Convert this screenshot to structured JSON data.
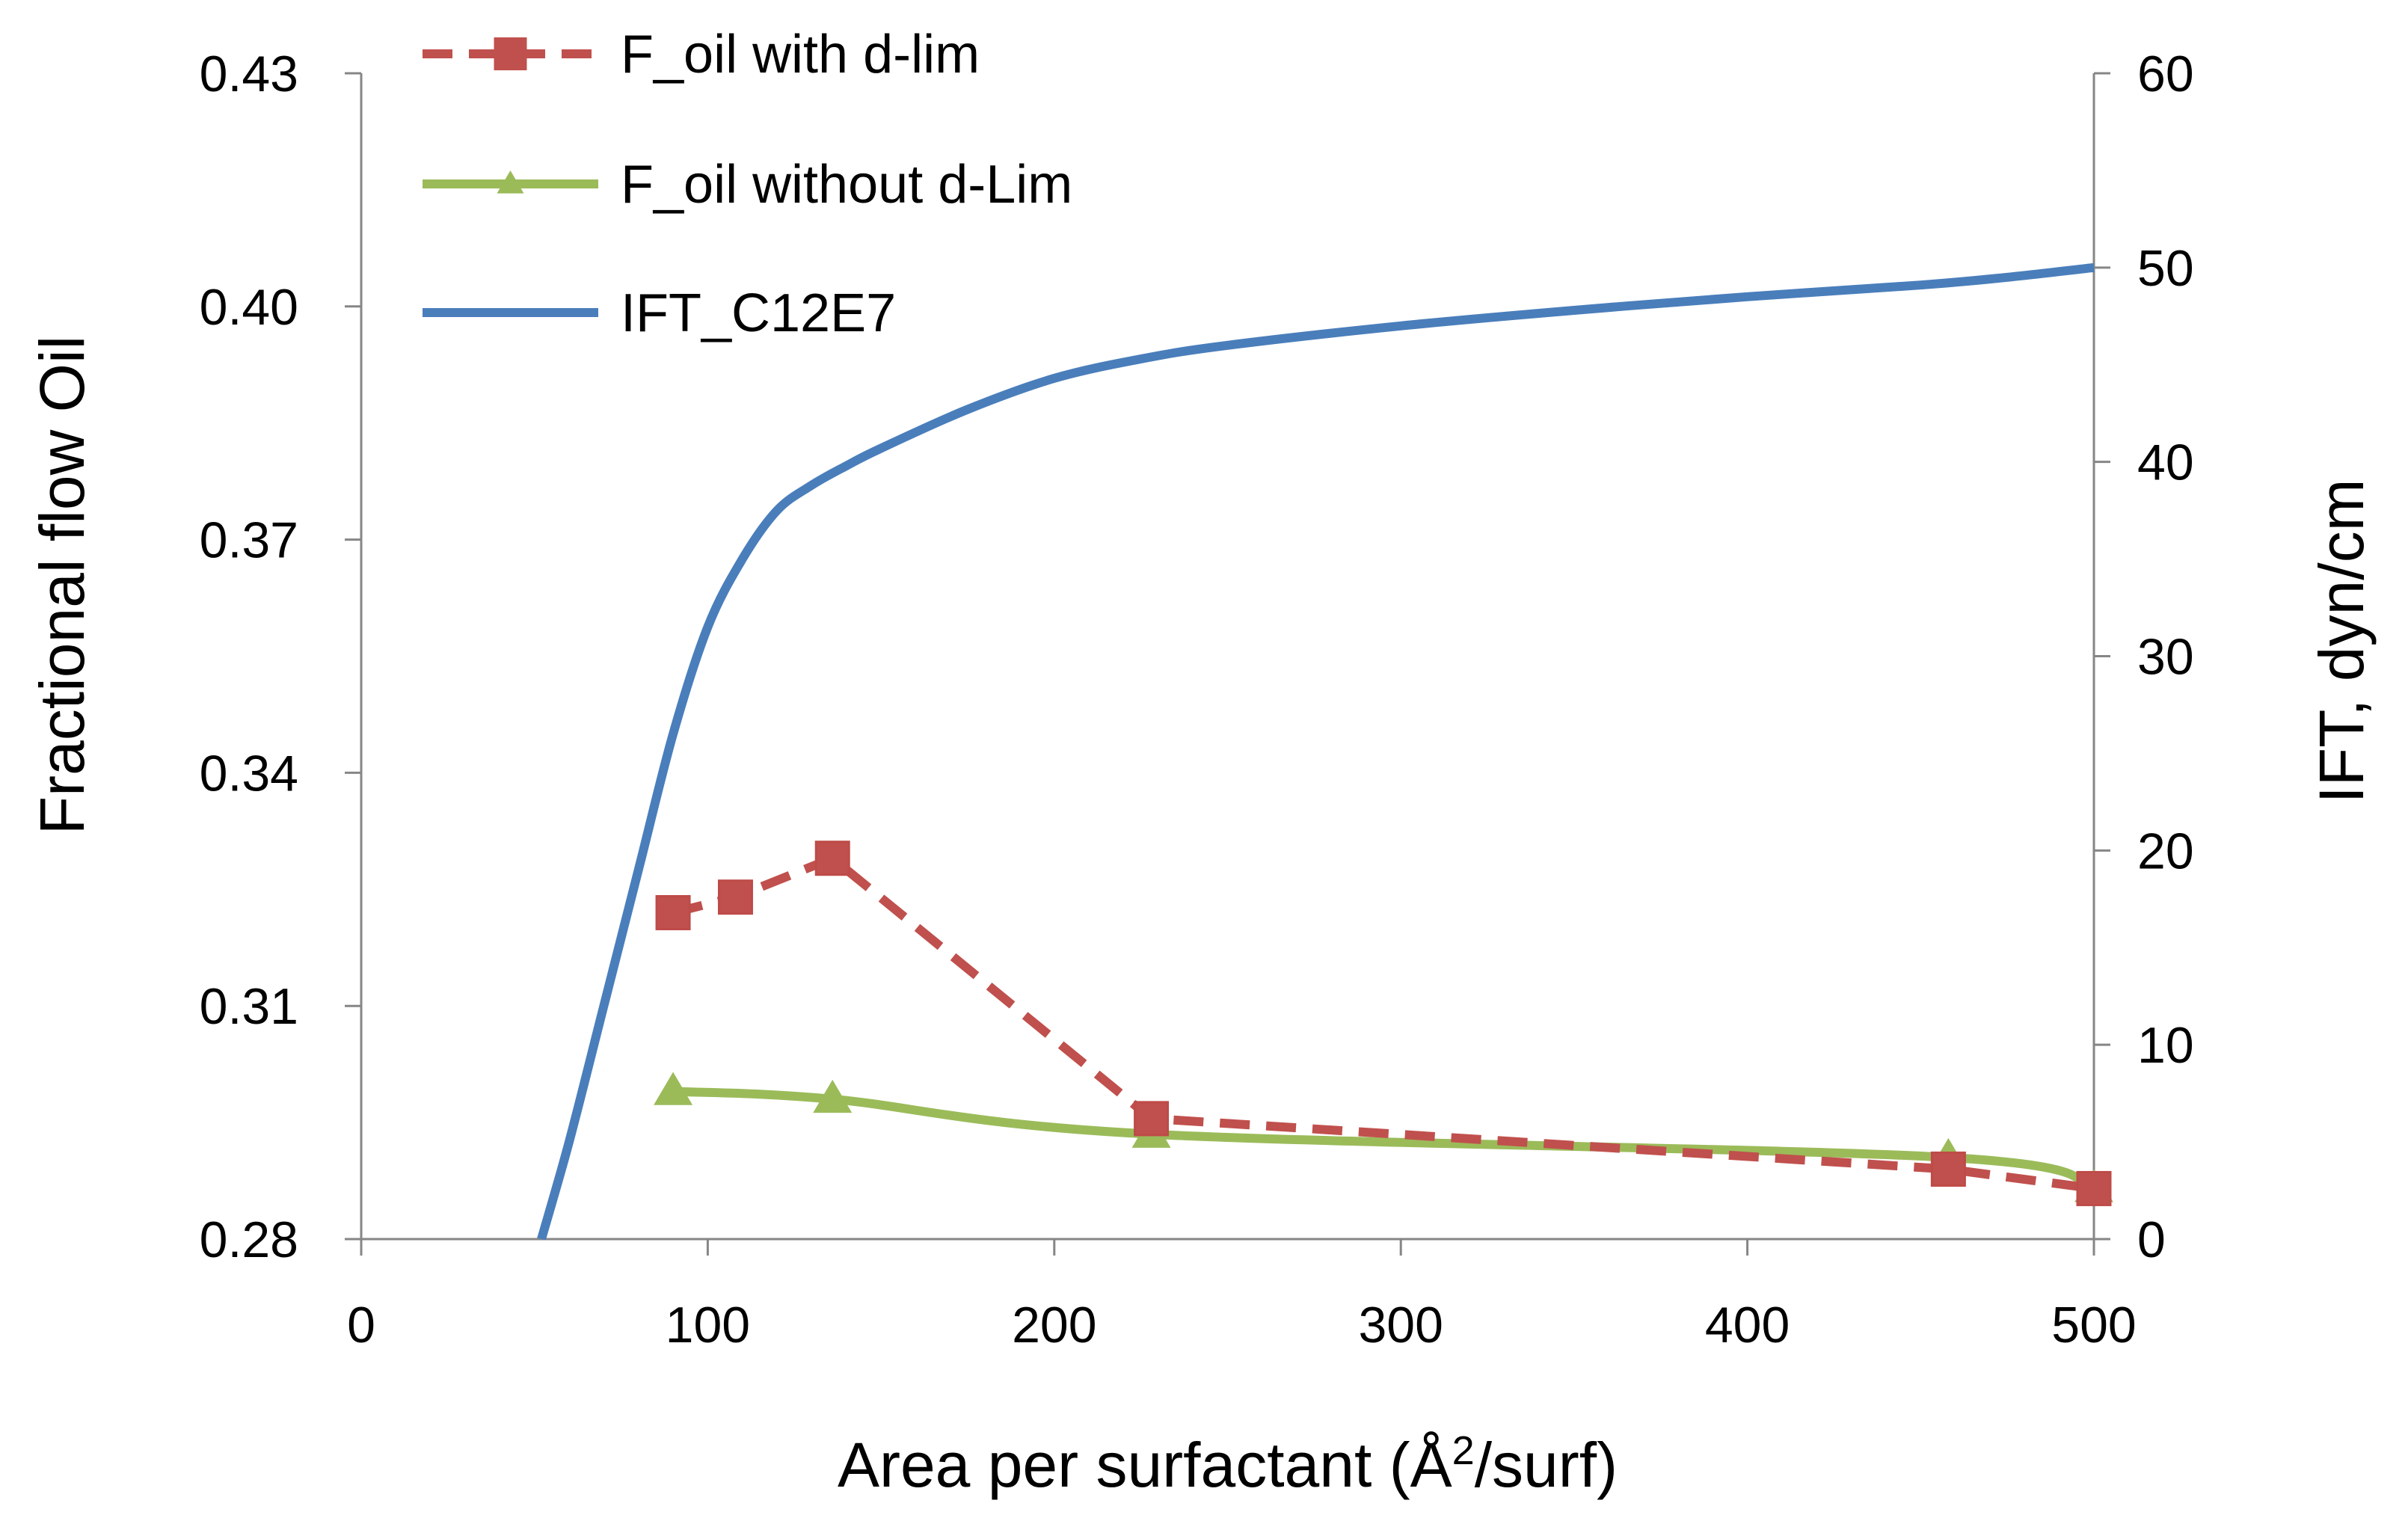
{
  "chart_data": {
    "type": "line",
    "xlabel_prefix": "Area per surfactant (Å",
    "xlabel_sup": "2",
    "xlabel_suffix": "/surf)",
    "ylabel": "Fractional flow Oil",
    "y2label": "IFT, dyn/cm",
    "xlim": [
      0,
      500
    ],
    "ylim": [
      0.28,
      0.43
    ],
    "y2lim": [
      0,
      60
    ],
    "x_ticks": [
      "0",
      "100",
      "200",
      "300",
      "400",
      "500"
    ],
    "x_tick_values": [
      0,
      100,
      200,
      300,
      400,
      500
    ],
    "y_ticks": [
      "0.28",
      "0.31",
      "0.34",
      "0.37",
      "0.40",
      "0.43"
    ],
    "y_tick_values": [
      0.28,
      0.31,
      0.34,
      0.37,
      0.4,
      0.43
    ],
    "y2_ticks": [
      "0",
      "10",
      "20",
      "30",
      "40",
      "50",
      "60"
    ],
    "y2_tick_values": [
      0,
      10,
      20,
      30,
      40,
      50,
      60
    ],
    "grid": false,
    "legend_position": "top-left",
    "series": [
      {
        "name": "F_oil with d-lim",
        "axis": "left",
        "color": "#c0504d",
        "line_style": "dashed",
        "marker": "square",
        "x": [
          90,
          108,
          136,
          228,
          458,
          500
        ],
        "y": [
          0.322,
          0.324,
          0.329,
          0.2955,
          0.289,
          0.2865
        ]
      },
      {
        "name": "F_oil without d-Lim",
        "axis": "left",
        "color": "#9bbb59",
        "line_style": "solid",
        "marker": "triangle",
        "x": [
          90,
          136,
          228,
          458,
          500
        ],
        "y": [
          0.299,
          0.298,
          0.2935,
          0.2905,
          0.2865
        ]
      },
      {
        "name": "IFT_C12E7",
        "axis": "right",
        "color": "#4a7ebb",
        "line_style": "solid",
        "marker": "none",
        "x": [
          52,
          60,
          70,
          80,
          90,
          100,
          110,
          120,
          130,
          140,
          150,
          175,
          200,
          225,
          250,
          300,
          350,
          400,
          450,
          475,
          500
        ],
        "y": [
          0,
          5,
          12,
          19,
          26,
          31.5,
          35,
          37.5,
          38.8,
          39.8,
          40.7,
          42.7,
          44.3,
          45.3,
          46,
          47,
          47.8,
          48.5,
          49.1,
          49.5,
          50
        ]
      }
    ]
  }
}
